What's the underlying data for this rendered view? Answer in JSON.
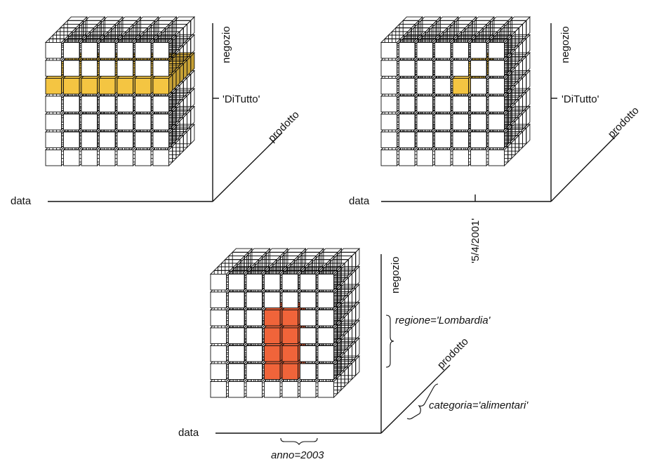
{
  "colors": {
    "cell_fill": "#ffffff",
    "cell_stroke": "#111111",
    "slice_highlight": "#f4c542",
    "dice_highlight": "#f0643a"
  },
  "cubes": [
    {
      "grid": {
        "cols": 7,
        "rows": 7,
        "depth": 7
      },
      "axes": {
        "x": "data",
        "y": "negozio",
        "z": "prodotto"
      },
      "annotations": [
        {
          "text": "'DiTutto'",
          "italic": false
        }
      ],
      "highlight": {
        "color_key": "slice_highlight",
        "cols": [
          0,
          6
        ],
        "rows": [
          4,
          4
        ],
        "depth": [
          0,
          6
        ]
      }
    },
    {
      "grid": {
        "cols": 7,
        "rows": 7,
        "depth": 7
      },
      "axes": {
        "x": "data",
        "y": "negozio",
        "z": "prodotto"
      },
      "annotations": [
        {
          "text": "'DiTutto'",
          "italic": false
        },
        {
          "text": "'5/4/2001'",
          "italic": false
        }
      ],
      "highlight": {
        "color_key": "slice_highlight",
        "cols": [
          4,
          4
        ],
        "rows": [
          4,
          4
        ],
        "depth": [
          0,
          6
        ]
      }
    },
    {
      "grid": {
        "cols": 7,
        "rows": 7,
        "depth": 7
      },
      "axes": {
        "x": "data",
        "y": "negozio",
        "z": "prodotto"
      },
      "annotations": [
        {
          "text": "regione='Lombardia'",
          "italic": true
        },
        {
          "text": "categoria='alimentari'",
          "italic": true
        },
        {
          "text": "anno=2003",
          "italic": true
        }
      ],
      "highlight": {
        "color_key": "dice_highlight",
        "cols": [
          3,
          4
        ],
        "rows": [
          1,
          4
        ],
        "depth": [
          0,
          1
        ]
      }
    }
  ]
}
